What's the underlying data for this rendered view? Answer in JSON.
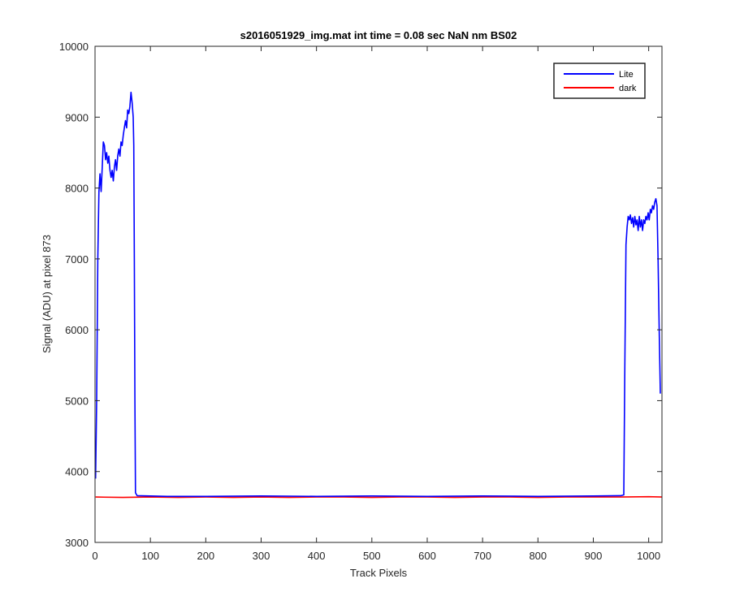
{
  "chart_data": {
    "type": "line",
    "title": "s2016051929_img.mat int time = 0.08 sec  NaN nm BS02",
    "xlabel": "Track Pixels",
    "ylabel": "Signal (ADU) at pixel 873",
    "xlim": [
      0,
      1024
    ],
    "ylim": [
      3000,
      10000
    ],
    "xticks": [
      0,
      100,
      200,
      300,
      400,
      500,
      600,
      700,
      800,
      900,
      1000
    ],
    "yticks": [
      3000,
      4000,
      5000,
      6000,
      7000,
      8000,
      9000,
      10000
    ],
    "grid": false,
    "legend_position": "top-right",
    "series": [
      {
        "name": "Lite",
        "color": "#0000ff",
        "points": [
          [
            1,
            3900
          ],
          [
            3,
            5000
          ],
          [
            5,
            7000
          ],
          [
            7,
            7950
          ],
          [
            9,
            8200
          ],
          [
            11,
            7950
          ],
          [
            13,
            8300
          ],
          [
            15,
            8650
          ],
          [
            17,
            8600
          ],
          [
            19,
            8400
          ],
          [
            21,
            8500
          ],
          [
            23,
            8350
          ],
          [
            25,
            8450
          ],
          [
            27,
            8250
          ],
          [
            29,
            8150
          ],
          [
            31,
            8250
          ],
          [
            33,
            8100
          ],
          [
            35,
            8300
          ],
          [
            37,
            8400
          ],
          [
            39,
            8250
          ],
          [
            41,
            8450
          ],
          [
            43,
            8550
          ],
          [
            45,
            8450
          ],
          [
            47,
            8650
          ],
          [
            49,
            8600
          ],
          [
            51,
            8750
          ],
          [
            53,
            8850
          ],
          [
            55,
            8950
          ],
          [
            57,
            8850
          ],
          [
            59,
            9100
          ],
          [
            61,
            9050
          ],
          [
            63,
            9150
          ],
          [
            65,
            9350
          ],
          [
            67,
            9200
          ],
          [
            69,
            9000
          ],
          [
            70,
            8600
          ],
          [
            71,
            7000
          ],
          [
            72,
            5000
          ],
          [
            73,
            3700
          ],
          [
            76,
            3660
          ],
          [
            100,
            3655
          ],
          [
            130,
            3650
          ],
          [
            200,
            3650
          ],
          [
            300,
            3655
          ],
          [
            400,
            3650
          ],
          [
            500,
            3655
          ],
          [
            600,
            3650
          ],
          [
            700,
            3655
          ],
          [
            800,
            3650
          ],
          [
            900,
            3655
          ],
          [
            950,
            3660
          ],
          [
            955,
            3670
          ],
          [
            957,
            5500
          ],
          [
            959,
            7200
          ],
          [
            961,
            7450
          ],
          [
            963,
            7600
          ],
          [
            965,
            7550
          ],
          [
            967,
            7620
          ],
          [
            969,
            7500
          ],
          [
            971,
            7580
          ],
          [
            973,
            7450
          ],
          [
            975,
            7600
          ],
          [
            977,
            7480
          ],
          [
            979,
            7550
          ],
          [
            981,
            7400
          ],
          [
            983,
            7600
          ],
          [
            985,
            7450
          ],
          [
            987,
            7550
          ],
          [
            989,
            7400
          ],
          [
            991,
            7550
          ],
          [
            993,
            7500
          ],
          [
            995,
            7600
          ],
          [
            997,
            7550
          ],
          [
            999,
            7650
          ],
          [
            1001,
            7550
          ],
          [
            1003,
            7700
          ],
          [
            1005,
            7650
          ],
          [
            1007,
            7750
          ],
          [
            1009,
            7700
          ],
          [
            1011,
            7800
          ],
          [
            1013,
            7850
          ],
          [
            1015,
            7750
          ],
          [
            1017,
            7000
          ],
          [
            1019,
            6000
          ],
          [
            1021,
            5100
          ]
        ]
      },
      {
        "name": "dark",
        "color": "#ff0000",
        "points": [
          [
            1,
            3640
          ],
          [
            50,
            3635
          ],
          [
            100,
            3640
          ],
          [
            150,
            3635
          ],
          [
            200,
            3640
          ],
          [
            250,
            3635
          ],
          [
            300,
            3640
          ],
          [
            350,
            3635
          ],
          [
            400,
            3640
          ],
          [
            450,
            3640
          ],
          [
            500,
            3635
          ],
          [
            550,
            3640
          ],
          [
            600,
            3640
          ],
          [
            650,
            3635
          ],
          [
            700,
            3640
          ],
          [
            750,
            3640
          ],
          [
            800,
            3635
          ],
          [
            850,
            3640
          ],
          [
            900,
            3640
          ],
          [
            950,
            3640
          ],
          [
            1000,
            3645
          ],
          [
            1024,
            3640
          ]
        ]
      }
    ]
  }
}
